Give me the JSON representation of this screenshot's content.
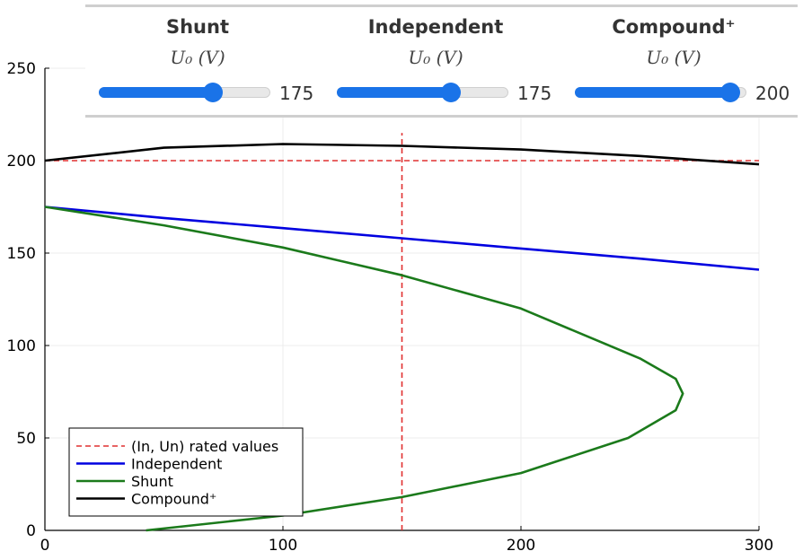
{
  "controls": [
    {
      "title": "Shunt",
      "param": "U₀ (V)",
      "value": "175",
      "fraction": 0.66
    },
    {
      "title": "Independent",
      "param": "U₀ (V)",
      "value": "175",
      "fraction": 0.66
    },
    {
      "title": "Compound⁺",
      "param": "U₀ (V)",
      "value": "200",
      "fraction": 0.9
    }
  ],
  "chart_data": {
    "type": "line",
    "xlim": [
      0,
      300
    ],
    "ylim": [
      0,
      250
    ],
    "xticks": [
      0,
      100,
      200,
      300
    ],
    "yticks": [
      0,
      50,
      100,
      150,
      200,
      250
    ],
    "grid": true,
    "legend_position": "bottom-left",
    "series": [
      {
        "name": "(In, Un) rated values",
        "color": "#e03030",
        "style": "dashed",
        "segments": [
          {
            "x": [
              0,
              300
            ],
            "y": [
              200,
              200
            ]
          },
          {
            "x": [
              150,
              150
            ],
            "y": [
              0,
              215
            ]
          }
        ]
      },
      {
        "name": "Independent",
        "color": "#0000e0",
        "style": "solid",
        "x": [
          0,
          50,
          100,
          150,
          200,
          250,
          300
        ],
        "y": [
          175,
          169,
          163.5,
          158,
          152.5,
          147,
          141
        ]
      },
      {
        "name": "Shunt",
        "color": "#1b7a1b",
        "style": "solid",
        "x": [
          42.5,
          100,
          150,
          200,
          245,
          265,
          268,
          265,
          250,
          200,
          150,
          100,
          50,
          0
        ],
        "y": [
          0,
          8,
          18,
          31,
          50,
          65,
          74,
          82,
          93,
          120,
          138,
          153,
          165,
          175
        ]
      },
      {
        "name": "Compound⁺",
        "color": "#000000",
        "style": "solid",
        "x": [
          0,
          50,
          100,
          150,
          200,
          250,
          300
        ],
        "y": [
          200,
          207,
          209,
          208,
          206,
          202.5,
          198
        ]
      }
    ]
  }
}
